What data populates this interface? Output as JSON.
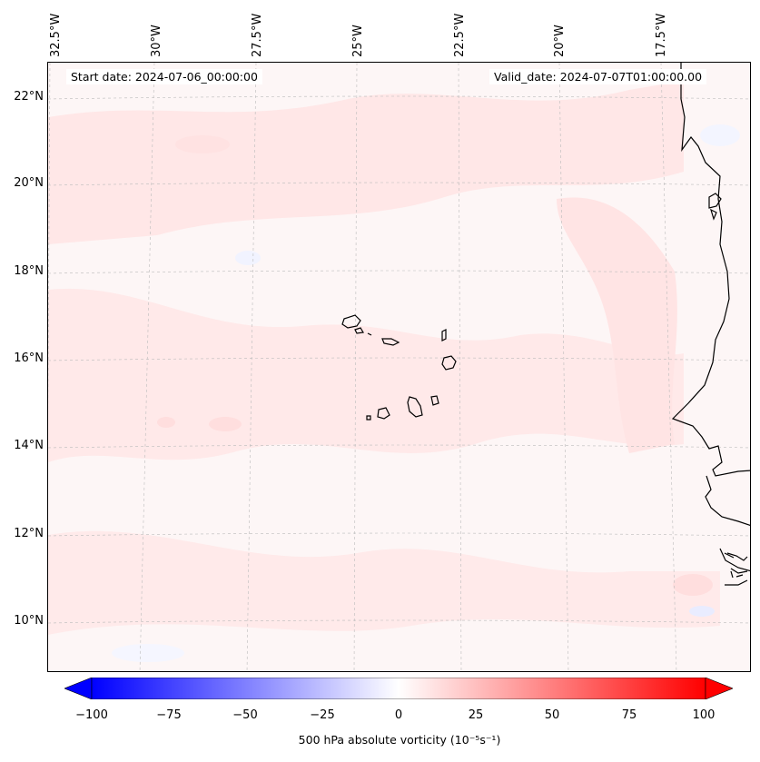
{
  "map": {
    "start_date": "Start date: 2024-07-06_00:00:00",
    "valid_date": "Valid_date: 2024-07-07T01:00:00.00",
    "lon_labels": [
      "32.5°W",
      "30°W",
      "27.5°W",
      "25°W",
      "22.5°W",
      "20°W",
      "17.5°W"
    ],
    "lat_labels": [
      "22°N",
      "20°N",
      "18°N",
      "16°N",
      "14°N",
      "12°N",
      "10°N"
    ],
    "colors": {
      "background_field": "#fdf6f6",
      "positive_tint": "#ffe6e6",
      "negative_tint": "#f3f5ff",
      "coastline": "#000000",
      "gridline": "#bbbbbb"
    }
  },
  "colorbar": {
    "ticks": [
      "−100",
      "−75",
      "−50",
      "−25",
      "0",
      "25",
      "50",
      "75",
      "100"
    ],
    "label": "500 hPa absolute vorticity (10⁻⁵s⁻¹)",
    "min_value": -100,
    "max_value": 100,
    "min_color": "#0000ff",
    "mid_color": "#ffffff",
    "max_color": "#ff0000"
  }
}
